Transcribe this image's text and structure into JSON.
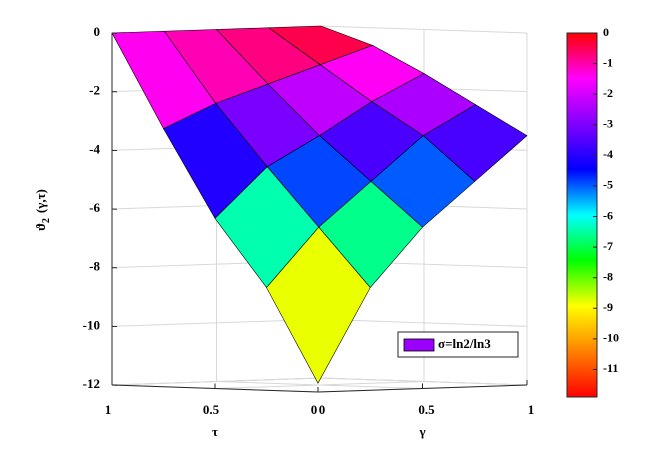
{
  "chart_data": {
    "type": "surface",
    "xlabel": "γ",
    "ylabel": "τ",
    "zlabel": [
      "ϑ",
      "2",
      "(γ,τ)"
    ],
    "x": [
      0,
      0.25,
      0.5,
      0.75,
      1
    ],
    "y": [
      0,
      0.25,
      0.5,
      0.75,
      1
    ],
    "z": [
      [
        -11.7,
        -8.5,
        -6.5,
        -5,
        -3.5
      ],
      [
        -8.5,
        -6.5,
        -5,
        -3.5,
        -2.5
      ],
      [
        -6.2,
        -4.5,
        -3.5,
        -2.4,
        -1.5
      ],
      [
        -3.2,
        -2.4,
        -1.8,
        -1.2,
        -0.6
      ],
      [
        0,
        0,
        0,
        0,
        0
      ]
    ],
    "xlim": [
      0,
      1
    ],
    "xticks": [
      0,
      0.5,
      1
    ],
    "ylim": [
      0,
      1
    ],
    "yticks": [
      0,
      0.5,
      1
    ],
    "zlim": [
      -12,
      0
    ],
    "zticks": [
      0,
      -2,
      -4,
      -6,
      -8,
      -10,
      -12
    ],
    "grid": true,
    "edge_color": "#000000",
    "legend": {
      "label": "σ=ln2/ln3",
      "color": "#9b00ff",
      "location": "southeast"
    },
    "colorbar": {
      "clim": [
        -11.9,
        0
      ],
      "ticks": [
        0,
        -1,
        -2,
        -3,
        -4,
        -5,
        -6,
        -7,
        -8,
        -9,
        -10,
        -11
      ],
      "colormap": [
        "#ff0000",
        "#ff8000",
        "#ffff00",
        "#00ff00",
        "#00ffff",
        "#0000ff",
        "#8000ff",
        "#ff00ff",
        "#ff0000"
      ]
    }
  }
}
